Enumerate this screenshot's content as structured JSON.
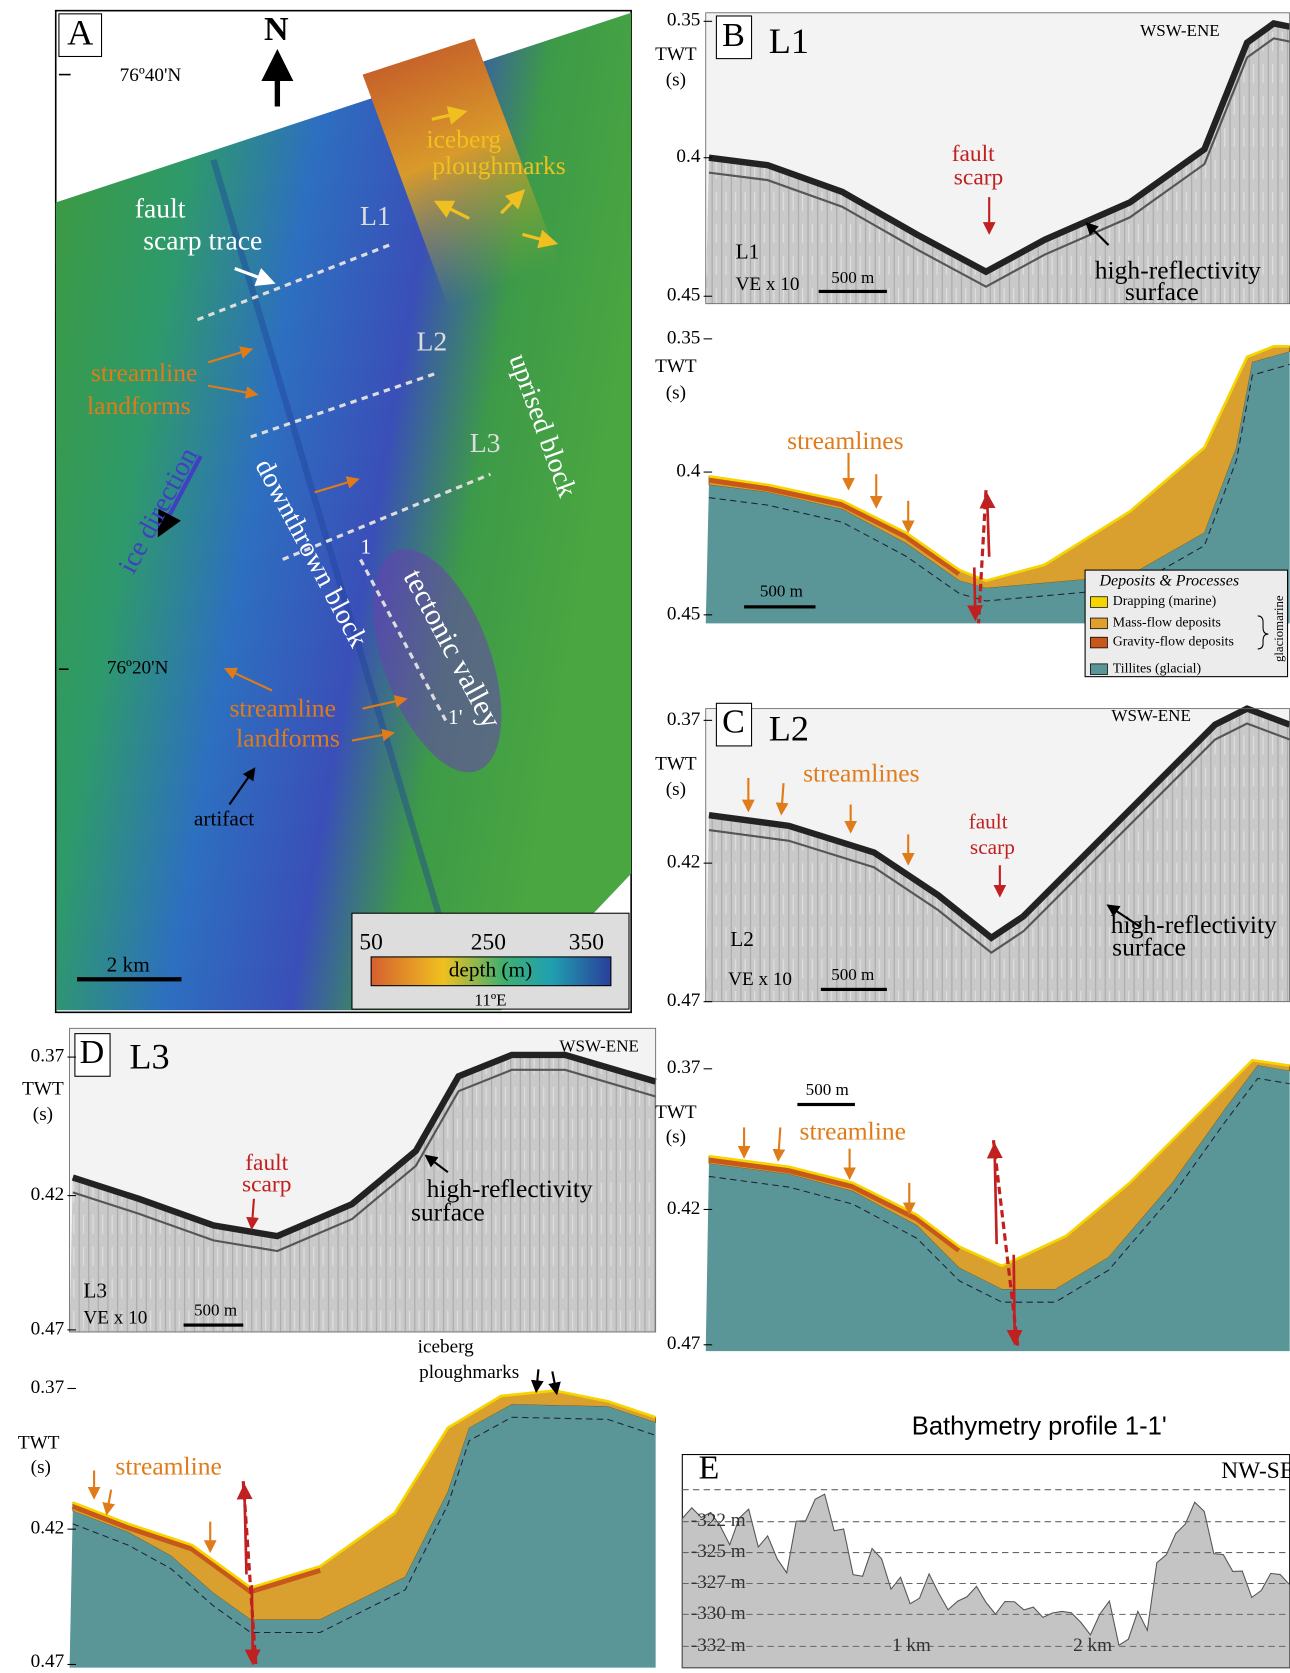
{
  "panel_a": {
    "label": "A",
    "north": "N",
    "lat_top": "76º40'N",
    "lat_bottom": "76º20'N",
    "iceberg_ploughmarks": [
      "iceberg",
      "ploughmarks"
    ],
    "fault_scarp_trace": [
      "fault",
      "scarp trace"
    ],
    "profile_lines": [
      "L1",
      "L2",
      "L3"
    ],
    "streamline_landforms_upper": [
      "streamline",
      "landforms"
    ],
    "streamline_landforms_lower": [
      "streamline",
      "landforms"
    ],
    "uprised_block": "uprised block",
    "downthrown_block": "downthrown block",
    "ice_direction": "ice direction",
    "tectonic_valley": "tectonic valley",
    "profile_start": "1",
    "profile_end": "1'",
    "artifact": "artifact",
    "scale_bar": "2 km",
    "colorbar": {
      "ticks": [
        "50",
        "250",
        "350"
      ],
      "label": "depth (m)"
    },
    "lon": "11ºE"
  },
  "panel_b": {
    "label": "B",
    "line": "L1",
    "direction": "WSW-ENE",
    "axis": {
      "ticks": [
        "0.35",
        "0.4",
        "0.45"
      ],
      "title": [
        "TWT",
        "(s)"
      ]
    },
    "fault_scarp": [
      "fault",
      "scarp"
    ],
    "inset_line": "L1",
    "exaggeration": "VE x 10",
    "scale_bar": "500 m",
    "high_reflectivity": [
      "high-reflectivity",
      "surface"
    ],
    "interpretation": {
      "axis": {
        "ticks": [
          "0.35",
          "0.4",
          "0.45"
        ],
        "title": [
          "TWT",
          "(s)"
        ]
      },
      "streamlines": "streamlines",
      "scale_bar": "500 m"
    }
  },
  "legend": {
    "title": "Deposits & Processes",
    "items": [
      "Drapping (marine)",
      "Mass-flow deposits",
      "Gravity-flow deposits",
      "Tillites (glacial)"
    ],
    "group": "glaciomarine"
  },
  "panel_c": {
    "label": "C",
    "line": "L2",
    "direction": "WSW-ENE",
    "axis": {
      "ticks": [
        "0.37",
        "0.42",
        "0.47"
      ],
      "title": [
        "TWT",
        "(s)"
      ]
    },
    "streamlines": "streamlines",
    "fault_scarp": [
      "fault",
      "scarp"
    ],
    "high_reflectivity": [
      "high-reflectivity",
      "surface"
    ],
    "inset_line": "L2",
    "exaggeration": "VE x 10",
    "scale_bar": "500 m",
    "interpretation": {
      "axis": {
        "ticks": [
          "0.37",
          "0.42",
          "0.47"
        ],
        "title": [
          "TWT",
          "(s)"
        ]
      },
      "scale_bar": "500 m",
      "streamline": "streamline"
    }
  },
  "panel_d": {
    "label": "D",
    "line": "L3",
    "direction": "WSW-ENE",
    "axis": {
      "ticks": [
        "0.37",
        "0.42",
        "0.47"
      ],
      "title": [
        "TWT",
        "(s)"
      ]
    },
    "fault_scarp": [
      "fault",
      "scarp"
    ],
    "high_reflectivity": [
      "high-reflectivity",
      "surface"
    ],
    "inset_line": "L3",
    "exaggeration": "VE x 10",
    "scale_bar": "500 m",
    "interpretation": {
      "iceberg_ploughmarks": [
        "iceberg",
        "ploughmarks"
      ],
      "axis": {
        "ticks": [
          "0.37",
          "0.42",
          "0.47"
        ],
        "title": [
          "TWT",
          "(s)"
        ]
      },
      "streamline": "streamline"
    }
  },
  "panel_e": {
    "title": "Bathymetry profile 1-1'",
    "label": "E",
    "direction": "NW-SE",
    "depth_labels": [
      "-322 m",
      "-325 m",
      "-327 m",
      "-330 m",
      "-332 m"
    ],
    "distance_labels": [
      "1 km",
      "2 km"
    ]
  }
}
